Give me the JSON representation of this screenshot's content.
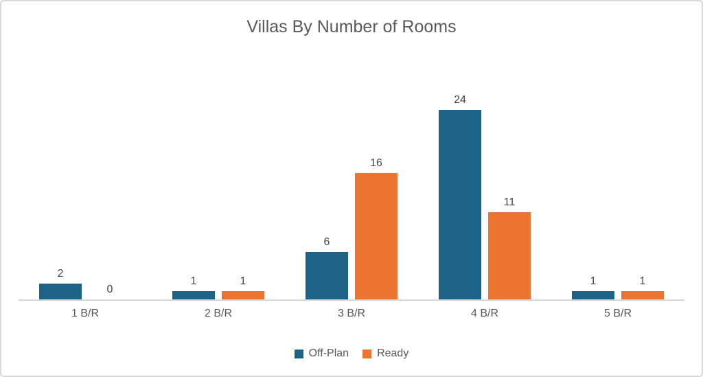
{
  "frame": {
    "background": "#ffffff",
    "border_color": "#d9d9d9"
  },
  "chart_data": {
    "type": "bar",
    "title": "Villas By Number of Rooms",
    "categories": [
      "1 B/R",
      "2 B/R",
      "3 B/R",
      "4 B/R",
      "5 B/R"
    ],
    "series": [
      {
        "name": "Off-Plan",
        "color": "#1c6387",
        "values": [
          2,
          1,
          6,
          24,
          1
        ]
      },
      {
        "name": "Ready",
        "color": "#ec7431",
        "values": [
          0,
          1,
          16,
          11,
          1
        ]
      }
    ],
    "ylim": [
      0,
      24
    ],
    "grid": false,
    "y_axis_visible": false,
    "data_labels": true,
    "legend_position": "bottom",
    "axis_line_color": "#d9d9d9",
    "title_color": "#595959",
    "data_label_color": "#444444",
    "category_label_color": "#595959"
  }
}
